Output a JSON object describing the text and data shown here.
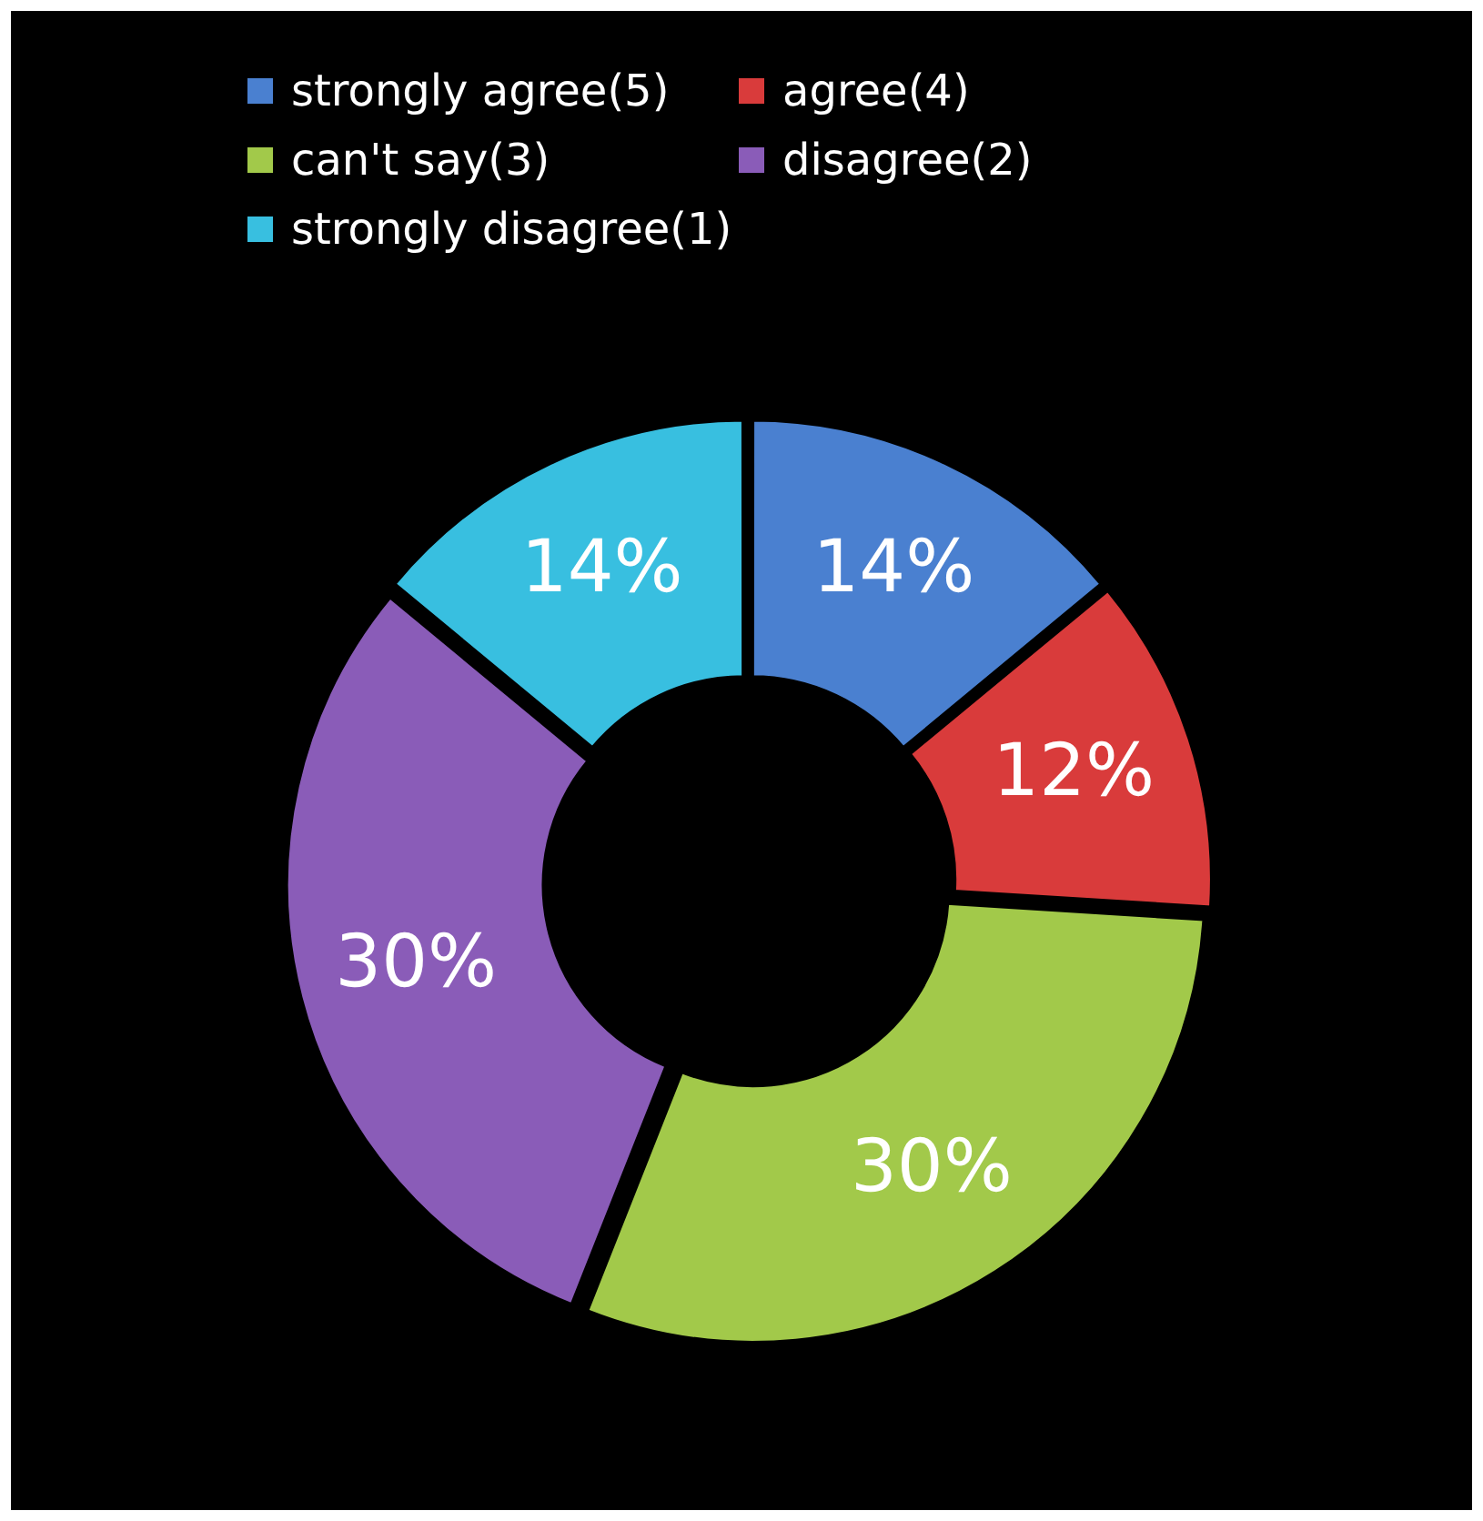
{
  "chart_data": {
    "type": "donut",
    "categories": [
      "strongly agree(5)",
      "agree(4)",
      "can't say(3)",
      "disagree(2)",
      "strongly disagree(1)"
    ],
    "values": [
      14,
      12,
      30,
      30,
      14
    ],
    "colors": [
      "#4a80d0",
      "#d93b3b",
      "#a2c94a",
      "#8a5cb8",
      "#38bfe0"
    ],
    "value_labels": [
      "14%",
      "12%",
      "30%",
      "30%",
      "14%"
    ],
    "legend": "top"
  }
}
